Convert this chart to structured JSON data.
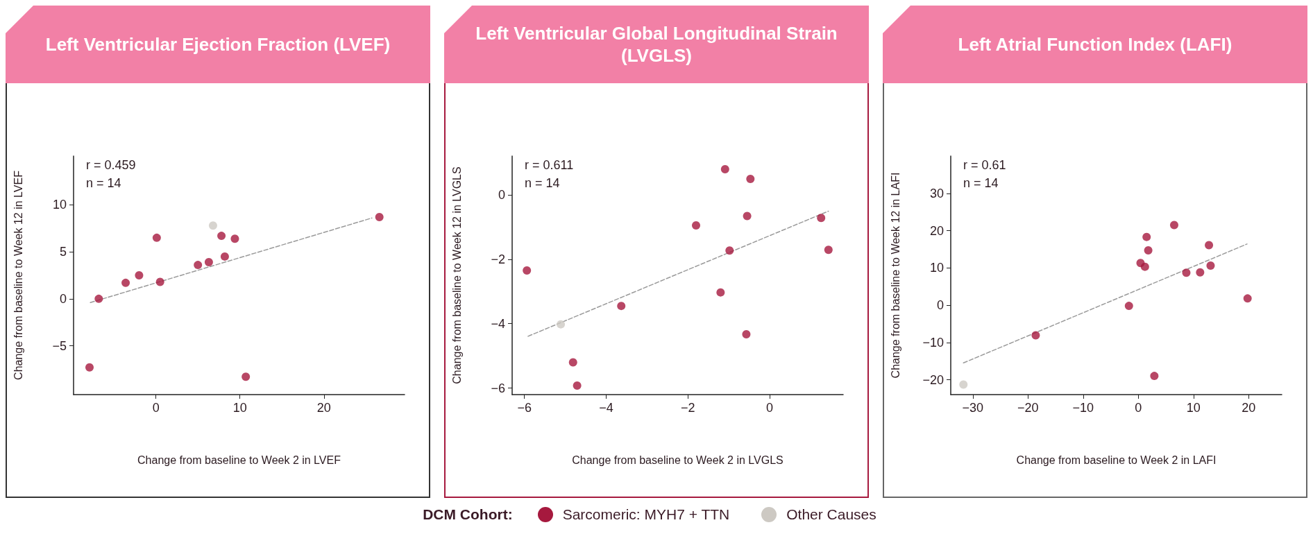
{
  "chart_data": [
    {
      "type": "scatter",
      "title": "Left Ventricular Ejection Fraction (LVEF)",
      "xlabel": "Change from baseline to Week 2 in LVEF",
      "ylabel": "Change from baseline to Week 12 in LVEF",
      "annotations": [
        "r = 0.459",
        "n = 14"
      ],
      "legend": "bottom",
      "legend_title": "DCM Cohort:",
      "marker": "circle",
      "xlim": [
        -9.8,
        29.6
      ],
      "ylim": [
        -10.2,
        15.2
      ],
      "xticks": [
        0,
        10,
        20
      ],
      "yticks": [
        -5,
        0,
        5,
        10
      ],
      "series": [
        {
          "name": "Sarcomeric: MYH7 + TTN",
          "color": "#a6193e",
          "x": [
            -7.9,
            -6.8,
            -3.6,
            -2.0,
            0.1,
            0.5,
            5.0,
            6.3,
            7.8,
            8.2,
            9.4,
            10.7,
            26.6
          ],
          "values": [
            -7.3,
            0,
            1.7,
            2.5,
            6.5,
            1.8,
            3.6,
            3.9,
            6.7,
            4.5,
            6.4,
            -8.3,
            8.7
          ]
        },
        {
          "name": "Other Causes",
          "color": "#cdc9c3",
          "x": [
            6.8
          ],
          "values": [
            7.8
          ]
        },
        {
          "type": "line",
          "color": "#9a9a9a",
          "line_style": "dashed",
          "marker": "none",
          "x": [
            -7.8,
            25.7
          ],
          "values": [
            -0.4,
            8.6
          ]
        }
      ]
    },
    {
      "type": "scatter",
      "title": "Left Ventricular Global Longitudinal Strain (LVGLS)",
      "xlabel": "Change from baseline to Week 2 in LVGLS",
      "ylabel": "Change from baseline to Week 12 in LVGLS",
      "annotations": [
        "r = 0.611",
        "n = 14"
      ],
      "marker": "circle",
      "xlim": [
        -6.3,
        1.8
      ],
      "ylim": [
        -6.2,
        1.2
      ],
      "xticks": [
        -6,
        -4,
        -2,
        0
      ],
      "yticks": [
        -6,
        -4,
        -2,
        0
      ],
      "series": [
        {
          "color": "#a6193e",
          "x": [
            -5.94,
            -4.81,
            -4.71,
            -3.63,
            -1.8,
            -1.2,
            -1.09,
            -0.98,
            -0.57,
            -0.55,
            -0.47,
            1.26,
            1.44
          ],
          "values": [
            -2.35,
            -5.2,
            -5.92,
            -3.45,
            -0.95,
            -3.03,
            0.79,
            -1.73,
            -4.33,
            -0.66,
            0.49,
            -0.72,
            -1.71
          ]
        },
        {
          "color": "#cdc9c3",
          "x": [
            -5.11
          ],
          "values": [
            -4.02
          ]
        },
        {
          "type": "line",
          "color": "#9a9a9a",
          "line_style": "dashed",
          "marker": "none",
          "x": [
            -5.91,
            1.44
          ],
          "values": [
            -4.39,
            -0.51
          ]
        }
      ]
    },
    {
      "type": "scatter",
      "title": "Left Atrial Function Index (LAFI)",
      "xlabel": "Change from baseline to Week 2 in LAFI",
      "ylabel": "Change from baseline to Week 12 in LAFI",
      "annotations": [
        "r = 0.61",
        "n = 14"
      ],
      "marker": "circle",
      "xlim": [
        -34,
        26
      ],
      "ylim": [
        -24,
        40
      ],
      "xticks": [
        -30,
        -20,
        -10,
        0,
        10,
        20
      ],
      "yticks": [
        -20,
        -10,
        0,
        10,
        20,
        30
      ],
      "series": [
        {
          "color": "#a6193e",
          "x": [
            -18.6,
            -1.7,
            0.4,
            1.2,
            1.5,
            1.8,
            2.9,
            6.5,
            8.7,
            11.2,
            12.8,
            13.1,
            19.8
          ],
          "values": [
            -8.1,
            -0.2,
            11.3,
            10.3,
            18.3,
            14.7,
            -19,
            21.5,
            8.7,
            8.8,
            16.1,
            10.6,
            1.8
          ]
        },
        {
          "color": "#cdc9c3",
          "x": [
            -31.7
          ],
          "values": [
            -21.3
          ]
        },
        {
          "type": "line",
          "color": "#9a9a9a",
          "line_style": "dashed",
          "marker": "none",
          "x": [
            -31.7,
            19.7
          ],
          "values": [
            -15.5,
            16.4
          ]
        }
      ]
    }
  ]
}
